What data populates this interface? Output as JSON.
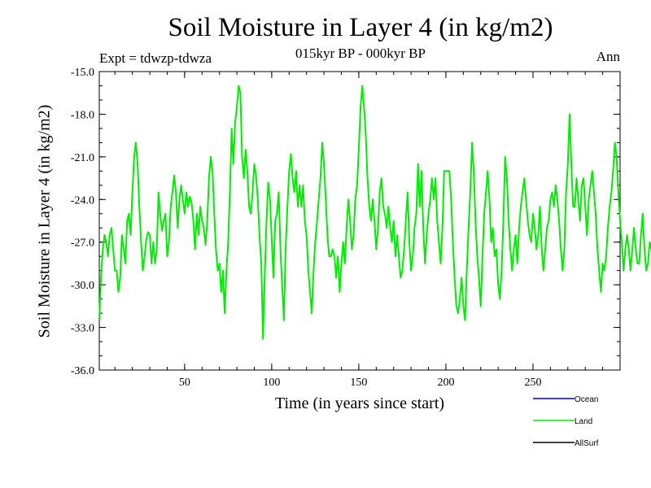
{
  "chart_data": {
    "type": "line",
    "title": "Soil Moisture in Layer 4 (in kg/m2)",
    "subtitle": "015kyr BP - 000kyr BP",
    "experiment": "Expt = tdwzp-tdwza",
    "season": "Ann",
    "xlabel": "Time (in years since start)",
    "ylabel": "Soil Moisture in Layer 4 (in kg/m2)",
    "xlim": [
      1,
      300
    ],
    "ylim": [
      -36.0,
      -15.0
    ],
    "x_ticks": [
      50,
      100,
      150,
      200,
      250
    ],
    "y_ticks": [
      "-15.0",
      "-18.0",
      "-21.0",
      "-24.0",
      "-27.0",
      "-30.0",
      "-33.0",
      "-36.0"
    ],
    "legend": [
      {
        "name": "Ocean",
        "color": "#0000cc"
      },
      {
        "name": "Land",
        "color": "#00ee00"
      },
      {
        "name": "AllSurf",
        "color": "#000000"
      }
    ],
    "series": [
      {
        "name": "Land",
        "color": "#00ee00",
        "x_start": 1,
        "x_step": 1,
        "values": [
          -32.5,
          -29.5,
          -27.5,
          -26.5,
          -27.0,
          -28.0,
          -26.5,
          -26.0,
          -27.5,
          -29.0,
          -29.0,
          -30.5,
          -29.5,
          -26.5,
          -27.5,
          -28.5,
          -25.5,
          -25.0,
          -26.5,
          -23.5,
          -21.0,
          -20.0,
          -21.5,
          -24.5,
          -27.0,
          -29.0,
          -28.0,
          -26.8,
          -26.3,
          -26.5,
          -28.5,
          -27.0,
          -28.5,
          -27.5,
          -23.5,
          -25.0,
          -26.2,
          -25.5,
          -25.0,
          -28.0,
          -27.0,
          -24.5,
          -23.5,
          -22.3,
          -23.5,
          -26.0,
          -24.0,
          -23.0,
          -24.0,
          -25.0,
          -23.5,
          -24.5,
          -23.8,
          -24.2,
          -25.5,
          -27.5,
          -25.0,
          -26.5,
          -24.5,
          -25.5,
          -26.0,
          -27.2,
          -25.5,
          -22.5,
          -21.0,
          -22.0,
          -25.0,
          -27.5,
          -29.0,
          -28.5,
          -30.5,
          -29.0,
          -32.0,
          -29.0,
          -27.0,
          -23.5,
          -19.0,
          -21.5,
          -18.5,
          -17.5,
          -16.0,
          -16.5,
          -21.0,
          -22.5,
          -20.5,
          -22.0,
          -24.5,
          -25.0,
          -23.5,
          -21.5,
          -22.3,
          -24.0,
          -26.5,
          -28.5,
          -33.8,
          -29.5,
          -25.5,
          -22.8,
          -24.0,
          -26.8,
          -29.5,
          -25.5,
          -25.0,
          -23.5,
          -27.5,
          -30.0,
          -32.5,
          -27.5,
          -24.5,
          -22.0,
          -20.8,
          -22.5,
          -23.5,
          -22.0,
          -24.5,
          -23.0,
          -24.5,
          -23.0,
          -25.5,
          -26.5,
          -29.0,
          -30.5,
          -32.0,
          -29.0,
          -27.0,
          -25.5,
          -24.0,
          -22.5,
          -20.0,
          -21.5,
          -24.0,
          -26.5,
          -28.0,
          -28.0,
          -27.5,
          -28.0,
          -29.5,
          -28.0,
          -30.5,
          -28.5,
          -27.0,
          -28.5,
          -26.0,
          -24.0,
          -25.5,
          -27.5,
          -26.5,
          -24.0,
          -23.0,
          -20.5,
          -17.5,
          -16.0,
          -17.5,
          -19.5,
          -22.5,
          -24.5,
          -25.5,
          -24.0,
          -25.5,
          -27.5,
          -26.0,
          -23.5,
          -22.5,
          -24.5,
          -25.0,
          -26.0,
          -24.5,
          -26.0,
          -27.0,
          -25.5,
          -28.0,
          -26.5,
          -28.0,
          -29.5,
          -29.0,
          -27.5,
          -25.5,
          -23.5,
          -27.0,
          -29.0,
          -28.0,
          -26.0,
          -25.0,
          -21.5,
          -24.5,
          -22.0,
          -26.0,
          -28.5,
          -26.5,
          -25.0,
          -24.0,
          -22.5,
          -24.0,
          -22.5,
          -25.5,
          -27.0,
          -28.5,
          -26.0,
          -22.0,
          -22.0,
          -22.0,
          -22.0,
          -24.0,
          -27.0,
          -29.5,
          -31.5,
          -32.0,
          -31.0,
          -29.5,
          -31.5,
          -32.5,
          -29.0,
          -26.0,
          -23.5,
          -20.0,
          -22.0,
          -25.5,
          -28.0,
          -29.5,
          -31.5,
          -28.0,
          -25.0,
          -23.5,
          -22.0,
          -24.0,
          -27.0,
          -26.0,
          -28.0,
          -27.5,
          -30.0,
          -31.0,
          -29.0,
          -25.5,
          -21.0,
          -22.5,
          -25.5,
          -27.5,
          -29.0,
          -27.5,
          -26.5,
          -28.5,
          -26.0,
          -24.5,
          -23.5,
          -22.5,
          -24.0,
          -25.5,
          -26.5,
          -27.0,
          -25.0,
          -26.0,
          -27.5,
          -26.5,
          -24.5,
          -27.5,
          -29.0,
          -27.5,
          -26.0,
          -25.5,
          -24.0,
          -23.5,
          -24.5,
          -23.0,
          -24.0,
          -25.5,
          -27.5,
          -29.0,
          -27.5,
          -23.5,
          -21.5,
          -18.0,
          -21.5,
          -24.5,
          -24.5,
          -22.5,
          -24.0,
          -25.5,
          -23.0,
          -22.5,
          -24.5,
          -26.5,
          -24.0,
          -23.0,
          -22.0,
          -23.5,
          -25.0,
          -27.5,
          -29.0,
          -30.5,
          -28.5,
          -29.0,
          -28.0,
          -26.0,
          -24.5,
          -23.5,
          -22.0,
          -20.0,
          -21.0,
          -23.5,
          -25.5,
          -27.0,
          -29.0,
          -27.5,
          -26.5,
          -27.5,
          -29.0,
          -27.5,
          -26.0,
          -27.5,
          -28.5,
          -28.5,
          -26.5,
          -25.0,
          -27.5,
          -29.0,
          -28.5,
          -27.0,
          -27.5,
          -28.5
        ]
      }
    ]
  }
}
